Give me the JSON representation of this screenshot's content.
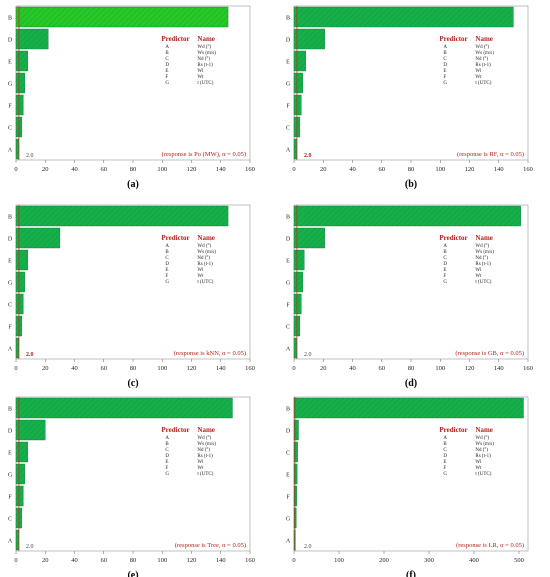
{
  "figure": {
    "predictor_header": "Predictor",
    "name_header": "Name",
    "legend_codes": [
      "A",
      "B",
      "C",
      "D",
      "E",
      "F",
      "G"
    ],
    "legend_names": [
      "Wd (°)",
      "Ws (m/s)",
      "Nd (°)",
      "Rs (t-1)",
      "Wl",
      "Wt",
      "t (UTC)"
    ],
    "colors": {
      "bar": "#16b04b",
      "bar_bright": "#27c827",
      "ref_line": "#c8281e",
      "text_red": "#b4201a"
    }
  },
  "chart_data": [
    {
      "type": "bar",
      "orientation": "horizontal",
      "panel_label": "(a)",
      "categories": [
        "B",
        "D",
        "E",
        "G",
        "F",
        "C",
        "A"
      ],
      "values": [
        145,
        22,
        8,
        6,
        5,
        4,
        2
      ],
      "xlim": [
        0,
        160
      ],
      "xticks": [
        0,
        20,
        40,
        60,
        80,
        100,
        120,
        140,
        160
      ],
      "ref_value": 2.0,
      "ref_label": "2.0",
      "note": "(response is Po (MW), α = 0.05)"
    },
    {
      "type": "bar",
      "orientation": "horizontal",
      "panel_label": "(b)",
      "categories": [
        "B",
        "D",
        "E",
        "G",
        "F",
        "C",
        "A"
      ],
      "values": [
        150,
        21,
        8,
        6,
        5,
        4,
        2
      ],
      "xlim": [
        0,
        160
      ],
      "xticks": [
        0,
        20,
        40,
        60,
        80,
        100,
        120,
        140,
        160
      ],
      "ref_value": 2.0,
      "ref_label": "2.0",
      "note": "(response is RF, α = 0.05)"
    },
    {
      "type": "bar",
      "orientation": "horizontal",
      "panel_label": "(c)",
      "categories": [
        "B",
        "D",
        "E",
        "G",
        "C",
        "F",
        "A"
      ],
      "values": [
        145,
        30,
        8,
        6,
        5,
        4,
        2
      ],
      "xlim": [
        0,
        160
      ],
      "xticks": [
        0,
        20,
        40,
        60,
        80,
        100,
        120,
        140,
        160
      ],
      "ref_value": 2.0,
      "ref_label": "2.0",
      "note": "(response is kNN, α = 0.05)"
    },
    {
      "type": "bar",
      "orientation": "horizontal",
      "panel_label": "(d)",
      "categories": [
        "B",
        "D",
        "E",
        "G",
        "F",
        "C",
        "A"
      ],
      "values": [
        155,
        21,
        7,
        6,
        5,
        4,
        2
      ],
      "xlim": [
        0,
        160
      ],
      "xticks": [
        0,
        20,
        40,
        60,
        80,
        100,
        120,
        140,
        160
      ],
      "ref_value": 2.0,
      "ref_label": "2.0",
      "note": "(response is GB, α = 0.05)"
    },
    {
      "type": "bar",
      "orientation": "horizontal",
      "panel_label": "(e)",
      "categories": [
        "B",
        "D",
        "E",
        "G",
        "F",
        "C",
        "A"
      ],
      "values": [
        148,
        20,
        8,
        6,
        5,
        4,
        2
      ],
      "xlim": [
        0,
        160
      ],
      "xticks": [
        0,
        20,
        40,
        60,
        80,
        100,
        120,
        140,
        160
      ],
      "ref_value": 2.0,
      "ref_label": "2.0",
      "note": "(response is Tree, α = 0.05)"
    },
    {
      "type": "bar",
      "orientation": "horizontal",
      "panel_label": "(f)",
      "categories": [
        "B",
        "D",
        "C",
        "E",
        "F",
        "G",
        "A"
      ],
      "values": [
        510,
        10,
        8,
        7,
        6,
        5,
        3
      ],
      "xlim": [
        0,
        520
      ],
      "xticks": [
        0,
        100,
        200,
        300,
        400,
        500
      ],
      "ref_value": 2.0,
      "ref_label": "2.0",
      "note": "(response is LR, α = 0.05)"
    }
  ]
}
